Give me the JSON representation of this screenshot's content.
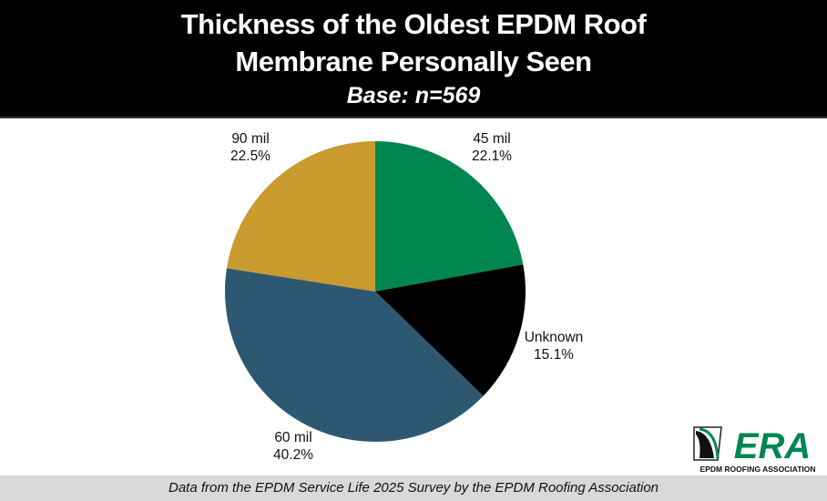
{
  "chart_data": {
    "type": "pie",
    "title": "Thickness of the Oldest EPDM Roof Membrane Personally Seen",
    "subtitle": "Base: n=569",
    "slices": [
      {
        "label": "45 mil",
        "value": 22.1,
        "value_label": "22.1%",
        "color": "#008751"
      },
      {
        "label": "Unknown",
        "value": 15.1,
        "value_label": "15.1%",
        "color": "#000000"
      },
      {
        "label": "60 mil",
        "value": 40.2,
        "value_label": "40.2%",
        "color": "#2e5872"
      },
      {
        "label": "90 mil",
        "value": 22.5,
        "value_label": "22.5%",
        "color": "#c99a2e"
      }
    ],
    "start": "top",
    "direction": "clockwise"
  },
  "header": {
    "title_line1": "Thickness of the Oldest EPDM Roof",
    "title_line2": "Membrane Personally Seen",
    "subtitle": "Base: n=569"
  },
  "footer": {
    "text": "Data from the EPDM Service Life 2025 Survey by the EPDM Roofing Association"
  },
  "logo": {
    "text": "ERA",
    "tagline": "EPDM ROOFING ASSOCIATION",
    "color": "#008751"
  }
}
